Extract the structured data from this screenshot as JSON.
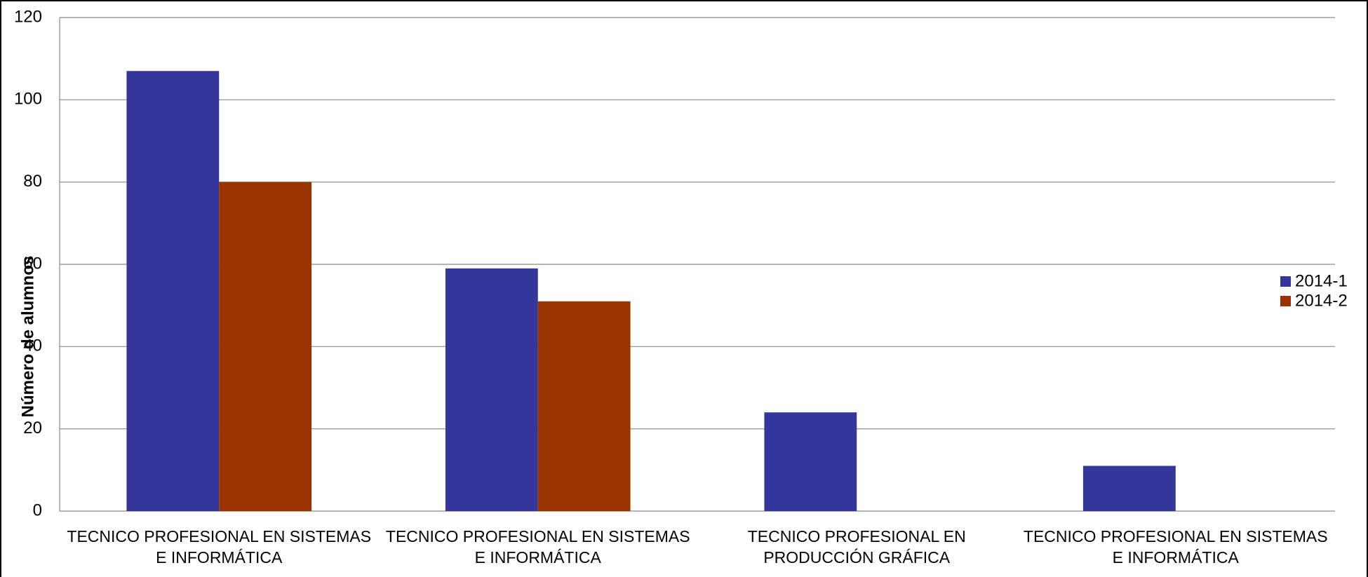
{
  "chart_data": {
    "type": "bar",
    "y_label": "Número de alumnos",
    "categories": [
      "TECNICO PROFESIONAL EN SISTEMAS E INFORMÁTICA",
      "TECNICO PROFESIONAL EN SISTEMAS E INFORMÁTICA",
      "TECNICO PROFESIONAL EN PRODUCCIÓN GRÁFICA",
      "TECNICO PROFESIONAL EN SISTEMAS E INFORMÁTICA"
    ],
    "series": [
      {
        "name": "2014-1",
        "color": "#35369b",
        "values": [
          107,
          59,
          24,
          11
        ]
      },
      {
        "name": "2014-2",
        "color": "#9b3300",
        "values": [
          80,
          51,
          null,
          null
        ]
      }
    ],
    "ylim": [
      0,
      120
    ],
    "yticks": [
      0,
      20,
      40,
      60,
      80,
      100,
      120
    ],
    "grid": true,
    "legend": "right"
  }
}
